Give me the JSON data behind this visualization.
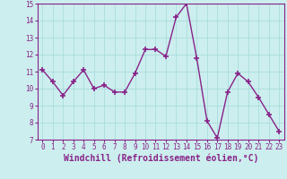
{
  "x": [
    0,
    1,
    2,
    3,
    4,
    5,
    6,
    7,
    8,
    9,
    10,
    11,
    12,
    13,
    14,
    15,
    16,
    17,
    18,
    19,
    20,
    21,
    22,
    23
  ],
  "y": [
    11.1,
    10.4,
    9.6,
    10.4,
    11.1,
    10.0,
    10.2,
    9.8,
    9.8,
    10.9,
    12.3,
    12.3,
    11.9,
    14.2,
    15.0,
    11.8,
    8.1,
    7.1,
    9.8,
    10.9,
    10.4,
    9.5,
    8.5,
    7.5
  ],
  "line_color": "#882288",
  "marker": "+",
  "marker_size": 4,
  "linewidth": 1.0,
  "xlabel": "Windchill (Refroidissement éolien,°C)",
  "xlabel_fontsize": 7,
  "ylim": [
    7,
    15
  ],
  "xlim": [
    -0.5,
    23.5
  ],
  "yticks": [
    7,
    8,
    9,
    10,
    11,
    12,
    13,
    14,
    15
  ],
  "xticks": [
    0,
    1,
    2,
    3,
    4,
    5,
    6,
    7,
    8,
    9,
    10,
    11,
    12,
    13,
    14,
    15,
    16,
    17,
    18,
    19,
    20,
    21,
    22,
    23
  ],
  "grid_color": "#aadddd",
  "bg_color": "#cceeee",
  "tick_fontsize": 5.5,
  "tick_color": "#882288",
  "label_color": "#882288",
  "spine_color": "#882288"
}
